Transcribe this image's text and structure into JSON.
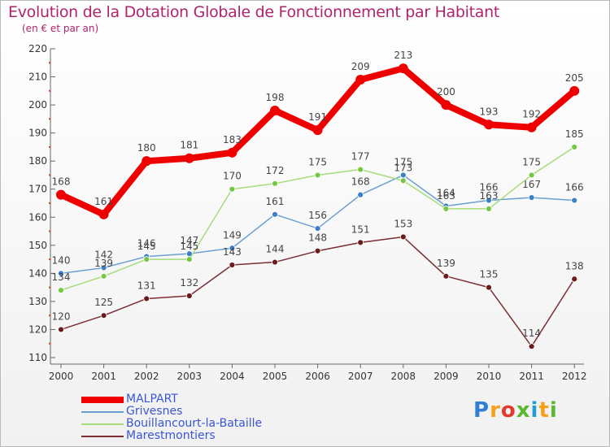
{
  "title": "Evolution de la Dotation Globale de Fonctionnement par Habitant",
  "subtitle": "(en € et par an)",
  "logo": {
    "p": "P",
    "r": "r",
    "o": "o",
    "x": "x",
    "i": "i",
    "t": "t",
    "i2": "i"
  },
  "colors": {
    "title": "#b0246c",
    "legend_text": "#3a56d8"
  },
  "chart_data": {
    "type": "line",
    "title": "Evolution de la Dotation Globale de Fonctionnement par Habitant",
    "subtitle": "(en € et par an)",
    "xlabel": "",
    "ylabel": "",
    "categories": [
      "2000",
      "2001",
      "2002",
      "2003",
      "2004",
      "2005",
      "2006",
      "2007",
      "2008",
      "2009",
      "2010",
      "2011",
      "2012"
    ],
    "yticks": [
      110,
      120,
      130,
      140,
      150,
      160,
      170,
      180,
      190,
      200,
      210,
      220
    ],
    "ylim": [
      110,
      220
    ],
    "grid": false,
    "legend_position": "bottom-left",
    "series": [
      {
        "name": "MALPART",
        "color": "#ee0000",
        "emphasis": true,
        "values": [
          168,
          161,
          180,
          181,
          183,
          198,
          191,
          209,
          213,
          200,
          193,
          192,
          205
        ]
      },
      {
        "name": "Grivesnes",
        "color": "#6aa0d0",
        "marker": "#3a7fc8",
        "emphasis": false,
        "values": [
          140,
          142,
          146,
          147,
          149,
          161,
          156,
          168,
          175,
          164,
          166,
          167,
          166
        ]
      },
      {
        "name": "Bouillancourt-la-Bataille",
        "color": "#a6dc7a",
        "marker": "#74c846",
        "emphasis": false,
        "values": [
          134,
          139,
          145,
          145,
          170,
          172,
          175,
          177,
          173,
          163,
          163,
          175,
          185
        ]
      },
      {
        "name": "Marestmontiers",
        "color": "#7b2e34",
        "marker": "#6a1c1c",
        "emphasis": false,
        "values": [
          120,
          125,
          131,
          132,
          143,
          144,
          148,
          151,
          153,
          139,
          135,
          114,
          138
        ]
      }
    ]
  }
}
